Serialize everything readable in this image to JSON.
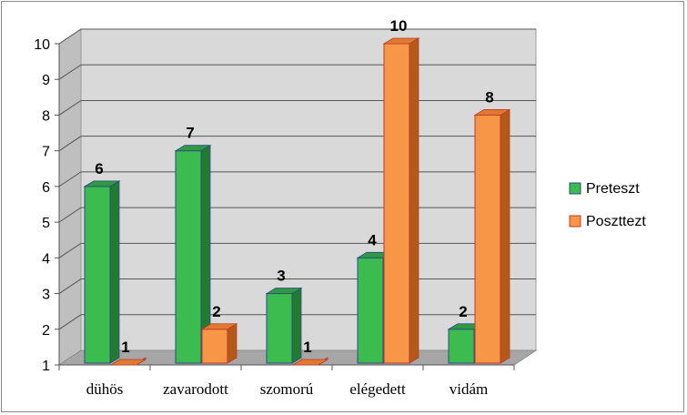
{
  "chart_data": {
    "type": "bar",
    "categories": [
      "dühös",
      "zavarodott",
      "szomorú",
      "elégedett",
      "vidám"
    ],
    "series": [
      {
        "name": "Preteszt",
        "values": [
          6,
          7,
          3,
          4,
          2
        ],
        "color": "#3cbb4f",
        "side_color": "#237a33",
        "top_color": "#2f9a40",
        "stroke": "#2a4a8a"
      },
      {
        "name": "Poszttezt",
        "values": [
          1,
          2,
          1,
          10,
          8
        ],
        "color": "#f79646",
        "side_color": "#b35a1a",
        "top_color": "#e07a30",
        "stroke": "#c0392b"
      }
    ],
    "ylim": [
      1,
      10
    ],
    "yticks": [
      "1",
      "2",
      "3",
      "4",
      "5",
      "6",
      "7",
      "8",
      "9",
      "10"
    ],
    "grid": true,
    "legend_position": "right",
    "wall_color": "#d9d9d9",
    "floor_color": "#a6a6a6"
  }
}
